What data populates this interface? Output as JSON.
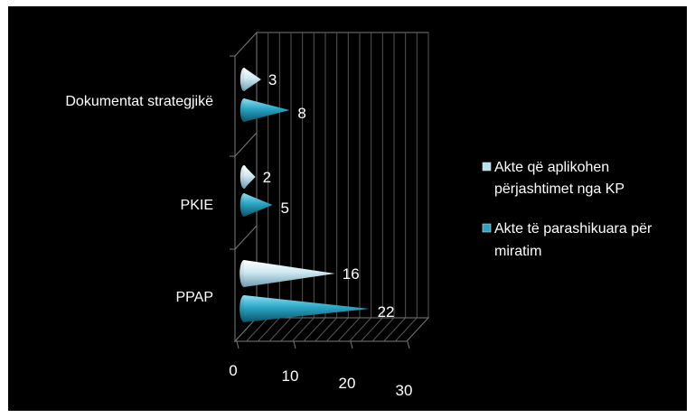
{
  "chart_data": {
    "type": "bar",
    "orientation": "horizontal",
    "style": "3d-cone",
    "categories": [
      "PPAP",
      "PKIE",
      "Dokumentat strategjikë"
    ],
    "series": [
      {
        "name": "Akte të parashikuara për miratim",
        "values": [
          22,
          5,
          8
        ],
        "color": "#2aa6c4"
      },
      {
        "name": "Akte që aplikohen përjashtimet  nga KP",
        "values": [
          16,
          2,
          3
        ],
        "color": "#b8e3ef"
      }
    ],
    "xlim": [
      0,
      30
    ],
    "x_ticks": [
      "0",
      "10",
      "20",
      "30"
    ],
    "legend_position": "right",
    "grid": true,
    "background": "#000000"
  },
  "legend": {
    "items": [
      {
        "line1": "Akte që aplikohen",
        "line2": "përjashtimet  nga KP",
        "color": "#b8e3ef"
      },
      {
        "line1": "Akte të parashikuara për",
        "line2": "miratim",
        "color": "#2aa6c4"
      }
    ]
  }
}
